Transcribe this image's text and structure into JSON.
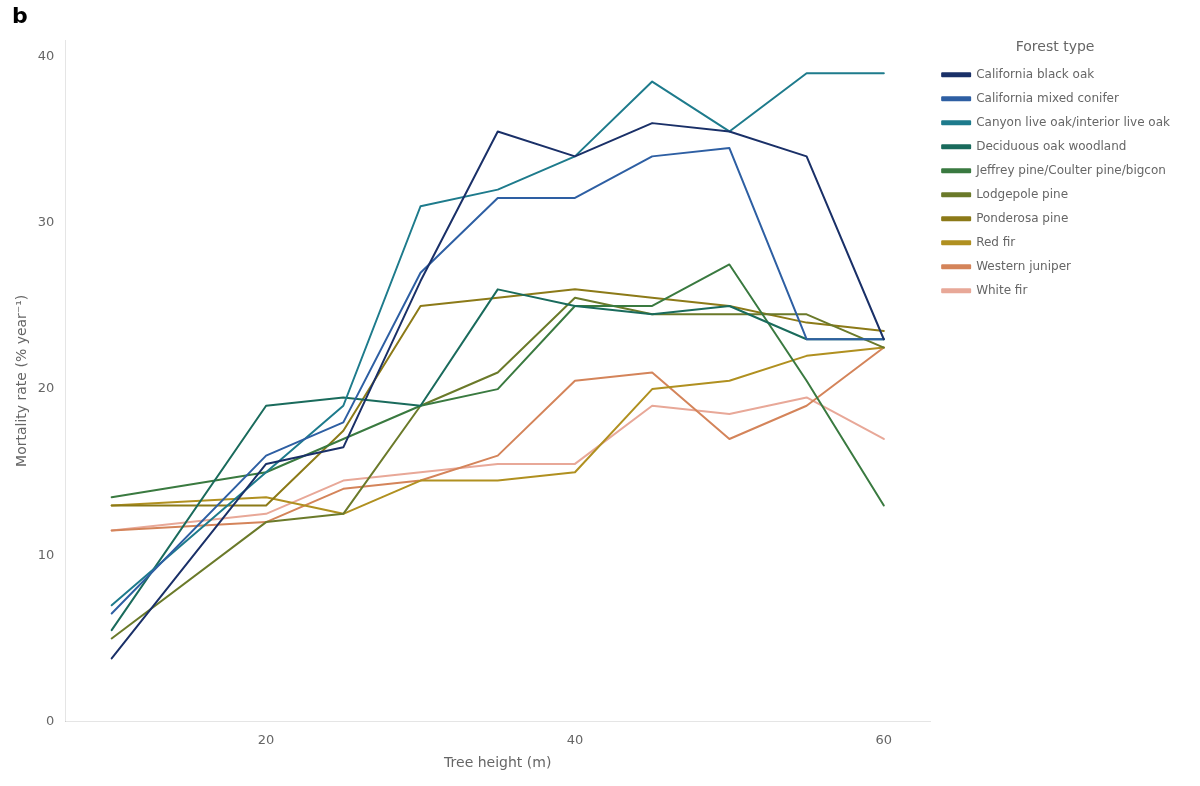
{
  "chart_data": {
    "type": "line",
    "x_label": "Tree height (m)",
    "y_label": "Mortality rate (% year⁻¹)",
    "annotations": [
      "b"
    ],
    "legend_title": "Forest type",
    "legend": "right",
    "grid": false,
    "xlim": [
      7,
      63
    ],
    "ylim": [
      0,
      41
    ],
    "xticks": [
      20,
      40,
      60
    ],
    "yticks": [
      0,
      10,
      20,
      30,
      40
    ],
    "x": [
      10,
      20,
      25,
      30,
      35,
      40,
      45,
      50,
      55,
      60
    ],
    "series": [
      {
        "name": "California black oak",
        "color": "#1a3068",
        "values": [
          3.8,
          15.5,
          16.5,
          26.5,
          35.5,
          34.0,
          36.0,
          35.5,
          34.0,
          23.0
        ]
      },
      {
        "name": "California mixed conifer",
        "color": "#2e5fa3",
        "values": [
          6.5,
          16.0,
          18.0,
          27.0,
          31.5,
          31.5,
          34.0,
          34.5,
          23.0,
          23.0
        ]
      },
      {
        "name": "Canyon live oak/interior live oak",
        "color": "#1e7b8c",
        "values": [
          7.0,
          15.0,
          19.0,
          31.0,
          32.0,
          34.0,
          38.5,
          35.5,
          39.0,
          39.0
        ]
      },
      {
        "name": "Deciduous oak woodland",
        "color": "#1a6b5c",
        "values": [
          5.5,
          19.0,
          19.5,
          19.0,
          26.0,
          25.0,
          24.5,
          25.0,
          23.0,
          23.0
        ]
      },
      {
        "name": "Jeffrey pine/Coulter pine/bigcon",
        "color": "#3a7a40",
        "values": [
          13.5,
          15.0,
          17.0,
          19.0,
          20.0,
          25.0,
          25.0,
          27.5,
          20.5,
          13.0
        ]
      },
      {
        "name": "Lodgepole pine",
        "color": "#6b7a2a",
        "values": [
          5.0,
          12.0,
          12.5,
          19.0,
          21.0,
          25.5,
          24.5,
          24.5,
          24.5,
          22.5
        ]
      },
      {
        "name": "Ponderosa pine",
        "color": "#8c7a18",
        "values": [
          13.0,
          13.0,
          17.5,
          25.0,
          25.5,
          26.0,
          25.5,
          25.0,
          24.0,
          23.5
        ]
      },
      {
        "name": "Red fir",
        "color": "#b09020",
        "values": [
          13.0,
          13.5,
          12.5,
          14.5,
          14.5,
          15.0,
          20.0,
          20.5,
          22.0,
          22.5
        ]
      },
      {
        "name": "Western juniper",
        "color": "#d4845a",
        "values": [
          11.5,
          12.0,
          14.0,
          14.5,
          16.0,
          20.5,
          21.0,
          17.0,
          19.0,
          22.5
        ]
      },
      {
        "name": "White fir",
        "color": "#e8a898",
        "values": [
          11.5,
          12.5,
          14.5,
          15.0,
          15.5,
          15.5,
          19.0,
          18.5,
          19.5,
          17.0
        ]
      }
    ]
  }
}
